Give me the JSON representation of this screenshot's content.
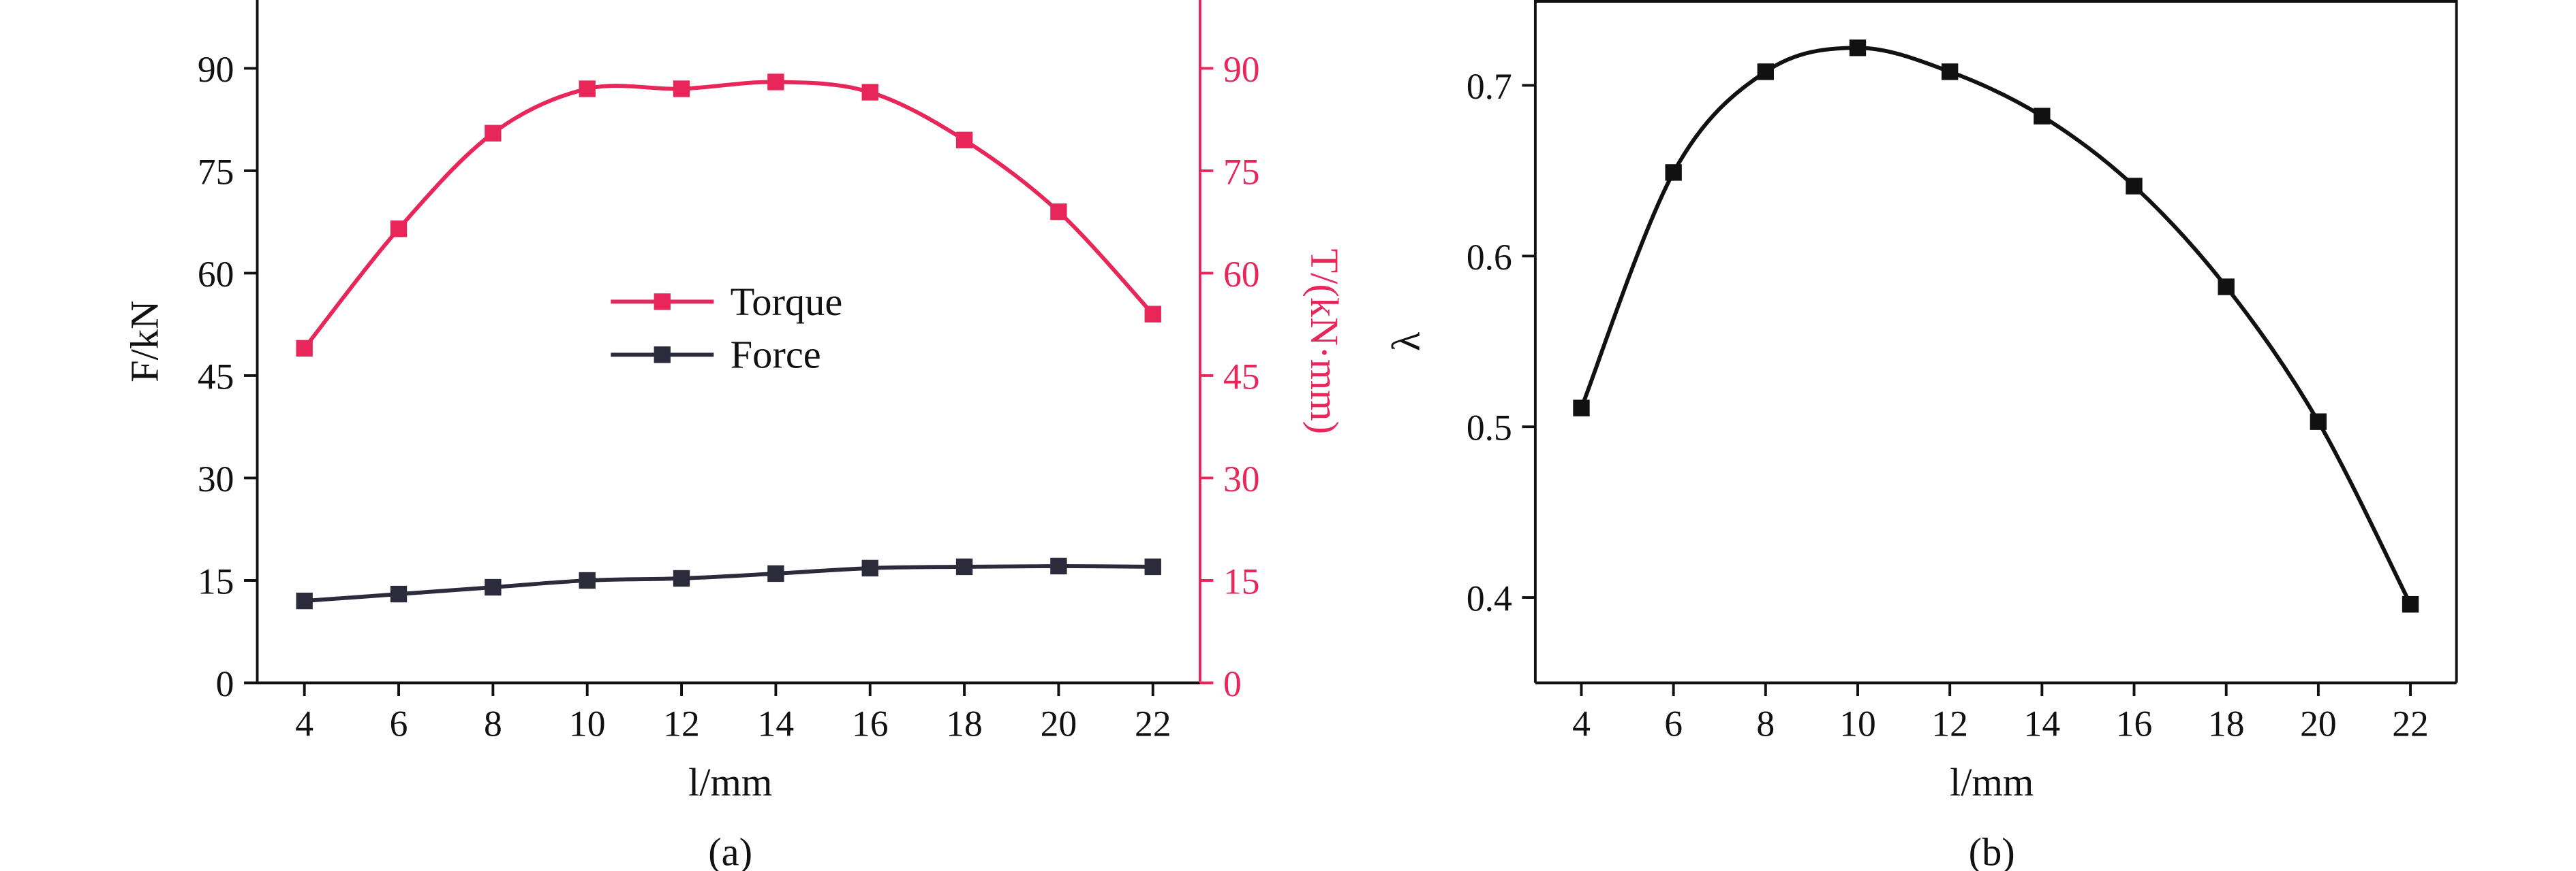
{
  "chart_data": [
    {
      "type": "line",
      "caption": "(a)",
      "x_label": "l/mm",
      "y_label": "F/kN",
      "y2_label": "T/(kN·mm)",
      "x": [
        4,
        6,
        8,
        10,
        12,
        14,
        16,
        18,
        20,
        22
      ],
      "xlim": [
        3,
        23
      ],
      "xticks": [
        4,
        6,
        8,
        10,
        12,
        14,
        16,
        18,
        20,
        22
      ],
      "ylim": [
        0,
        100
      ],
      "yticks": [
        0,
        15,
        30,
        45,
        60,
        75,
        90
      ],
      "y2lim": [
        0,
        100
      ],
      "y2ticks": [
        0,
        15,
        30,
        45,
        60,
        75,
        90
      ],
      "y2_color": "#e8265a",
      "legend": "center",
      "series": [
        {
          "name": "Torque",
          "color": "#e8265a",
          "axis": "y2",
          "values": [
            49,
            66.5,
            80.5,
            87,
            87,
            88,
            86.5,
            79.5,
            69,
            54
          ]
        },
        {
          "name": "Force",
          "color": "#2b2b3c",
          "values": [
            12,
            13,
            14,
            15,
            15.3,
            16,
            16.8,
            17,
            17.1,
            17
          ]
        }
      ]
    },
    {
      "type": "line",
      "caption": "(b)",
      "x_label": "l/mm",
      "y_label": "λ",
      "x": [
        4,
        6,
        8,
        10,
        12,
        14,
        16,
        18,
        20,
        22
      ],
      "xlim": [
        3,
        23
      ],
      "xticks": [
        4,
        6,
        8,
        10,
        12,
        14,
        16,
        18,
        20,
        22
      ],
      "ylim": [
        0.35,
        0.75
      ],
      "yticks": [
        0.4,
        0.5,
        0.6,
        0.7
      ],
      "series": [
        {
          "color": "#111111",
          "values": [
            0.511,
            0.649,
            0.708,
            0.722,
            0.708,
            0.682,
            0.641,
            0.582,
            0.503,
            0.396
          ]
        }
      ]
    }
  ]
}
